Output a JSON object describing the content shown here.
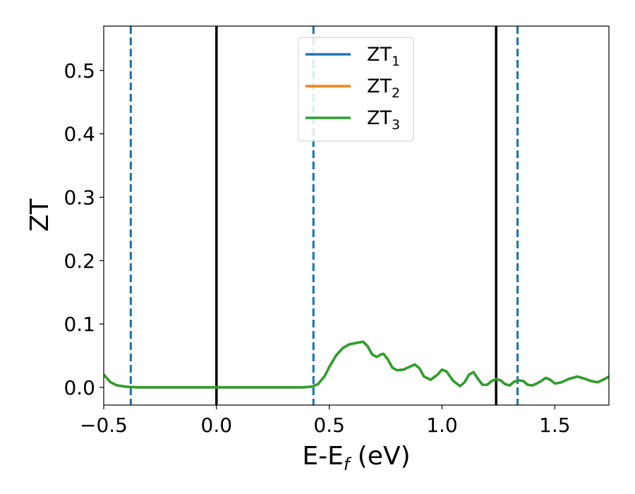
{
  "chart_data": {
    "type": "line",
    "xlabel": "E-E",
    "xlabel_sub": "f",
    "xlabel_unit": " (eV)",
    "ylabel": "ZT",
    "xlim": [
      -0.5,
      1.74
    ],
    "ylim": [
      -0.028,
      0.57
    ],
    "xticks": [
      -0.5,
      0.0,
      0.5,
      1.0,
      1.5
    ],
    "xtick_labels": [
      "−0.5",
      "0.0",
      "0.5",
      "1.0",
      "1.5"
    ],
    "yticks": [
      0.0,
      0.1,
      0.2,
      0.3,
      0.4,
      0.5
    ],
    "ytick_labels": [
      "0.0",
      "0.1",
      "0.2",
      "0.3",
      "0.4",
      "0.5"
    ],
    "grid": false,
    "legend_position": "top-center",
    "series": [
      {
        "name": "ZT",
        "sub": "1",
        "color": "#1f77b4",
        "x": [
          -0.5,
          -0.47,
          -0.44,
          -0.4,
          -0.35,
          -0.3,
          -0.2,
          -0.1,
          0.0,
          0.1,
          0.2,
          0.3,
          0.38,
          0.42,
          0.45,
          0.48,
          0.5,
          0.53,
          0.56,
          0.59,
          0.62,
          0.65,
          0.67,
          0.69,
          0.71,
          0.73,
          0.74,
          0.76,
          0.78,
          0.8,
          0.83,
          0.86,
          0.88,
          0.9,
          0.92,
          0.95,
          0.98,
          1.0,
          1.02,
          1.05,
          1.08,
          1.1,
          1.12,
          1.14,
          1.16,
          1.18,
          1.2,
          1.22,
          1.24,
          1.26,
          1.28,
          1.3,
          1.32,
          1.34,
          1.36,
          1.38,
          1.4,
          1.42,
          1.44,
          1.46,
          1.48,
          1.5,
          1.53,
          1.56,
          1.6,
          1.63,
          1.66,
          1.69,
          1.72,
          1.74
        ],
        "y": [
          0.02,
          0.008,
          0.003,
          0.001,
          0.0,
          0.0,
          0.0,
          0.0,
          0.0,
          0.0,
          0.0,
          0.0,
          0.0,
          0.001,
          0.005,
          0.018,
          0.032,
          0.05,
          0.062,
          0.068,
          0.07,
          0.072,
          0.065,
          0.052,
          0.048,
          0.052,
          0.053,
          0.044,
          0.031,
          0.027,
          0.028,
          0.033,
          0.036,
          0.03,
          0.017,
          0.012,
          0.02,
          0.028,
          0.025,
          0.01,
          0.002,
          0.008,
          0.02,
          0.024,
          0.013,
          0.004,
          0.004,
          0.01,
          0.013,
          0.011,
          0.005,
          0.003,
          0.009,
          0.011,
          0.01,
          0.004,
          0.003,
          0.006,
          0.01,
          0.015,
          0.012,
          0.006,
          0.008,
          0.013,
          0.017,
          0.014,
          0.01,
          0.008,
          0.013,
          0.017
        ]
      },
      {
        "name": "ZT",
        "sub": "2",
        "color": "#ff7f0e",
        "x": [
          -0.5,
          -0.47,
          -0.44,
          -0.4,
          -0.35,
          -0.3,
          -0.2,
          -0.1,
          0.0,
          0.1,
          0.2,
          0.3,
          0.38,
          0.42,
          0.45,
          0.48,
          0.5,
          0.53,
          0.56,
          0.59,
          0.62,
          0.65,
          0.67,
          0.69,
          0.71,
          0.73,
          0.74,
          0.76,
          0.78,
          0.8,
          0.83,
          0.86,
          0.88,
          0.9,
          0.92,
          0.95,
          0.98,
          1.0,
          1.02,
          1.05,
          1.08,
          1.1,
          1.12,
          1.14,
          1.16,
          1.18,
          1.2,
          1.22,
          1.24,
          1.26,
          1.28,
          1.3,
          1.32,
          1.34,
          1.36,
          1.38,
          1.4,
          1.42,
          1.44,
          1.46,
          1.48,
          1.5,
          1.53,
          1.56,
          1.6,
          1.63,
          1.66,
          1.69,
          1.72,
          1.74
        ],
        "y": [
          0.02,
          0.008,
          0.003,
          0.001,
          0.0,
          0.0,
          0.0,
          0.0,
          0.0,
          0.0,
          0.0,
          0.0,
          0.0,
          0.001,
          0.005,
          0.018,
          0.032,
          0.05,
          0.062,
          0.068,
          0.07,
          0.072,
          0.065,
          0.052,
          0.048,
          0.052,
          0.053,
          0.044,
          0.031,
          0.027,
          0.028,
          0.033,
          0.036,
          0.03,
          0.017,
          0.012,
          0.02,
          0.028,
          0.025,
          0.01,
          0.002,
          0.008,
          0.02,
          0.024,
          0.013,
          0.004,
          0.004,
          0.01,
          0.013,
          0.011,
          0.005,
          0.003,
          0.009,
          0.011,
          0.01,
          0.004,
          0.003,
          0.006,
          0.01,
          0.015,
          0.012,
          0.006,
          0.008,
          0.013,
          0.017,
          0.014,
          0.01,
          0.008,
          0.013,
          0.017
        ]
      },
      {
        "name": "ZT",
        "sub": "3",
        "color": "#2ca02c",
        "x": [
          -0.5,
          -0.47,
          -0.44,
          -0.4,
          -0.35,
          -0.3,
          -0.2,
          -0.1,
          0.0,
          0.1,
          0.2,
          0.3,
          0.38,
          0.42,
          0.45,
          0.48,
          0.5,
          0.53,
          0.56,
          0.59,
          0.62,
          0.65,
          0.67,
          0.69,
          0.71,
          0.73,
          0.74,
          0.76,
          0.78,
          0.8,
          0.83,
          0.86,
          0.88,
          0.9,
          0.92,
          0.95,
          0.98,
          1.0,
          1.02,
          1.05,
          1.08,
          1.1,
          1.12,
          1.14,
          1.16,
          1.18,
          1.2,
          1.22,
          1.24,
          1.26,
          1.28,
          1.3,
          1.32,
          1.34,
          1.36,
          1.38,
          1.4,
          1.42,
          1.44,
          1.46,
          1.48,
          1.5,
          1.53,
          1.56,
          1.6,
          1.63,
          1.66,
          1.69,
          1.72,
          1.74
        ],
        "y": [
          0.02,
          0.008,
          0.003,
          0.001,
          0.0,
          0.0,
          0.0,
          0.0,
          0.0,
          0.0,
          0.0,
          0.0,
          0.0,
          0.001,
          0.005,
          0.018,
          0.032,
          0.05,
          0.062,
          0.068,
          0.07,
          0.072,
          0.065,
          0.052,
          0.048,
          0.052,
          0.053,
          0.044,
          0.031,
          0.027,
          0.028,
          0.033,
          0.036,
          0.03,
          0.017,
          0.012,
          0.02,
          0.028,
          0.025,
          0.01,
          0.002,
          0.008,
          0.02,
          0.024,
          0.013,
          0.004,
          0.004,
          0.01,
          0.013,
          0.011,
          0.005,
          0.003,
          0.009,
          0.011,
          0.01,
          0.004,
          0.003,
          0.006,
          0.01,
          0.015,
          0.012,
          0.006,
          0.008,
          0.013,
          0.017,
          0.014,
          0.01,
          0.008,
          0.013,
          0.017
        ]
      }
    ],
    "vlines": [
      {
        "x": 0.0,
        "style": "solid",
        "color": "#000000"
      },
      {
        "x": 1.24,
        "style": "solid",
        "color": "#000000"
      },
      {
        "x": -0.38,
        "style": "dashed",
        "color": "#1f77b4"
      },
      {
        "x": 0.43,
        "style": "dashed",
        "color": "#1f77b4"
      },
      {
        "x": 1.335,
        "style": "dashed",
        "color": "#1f77b4"
      }
    ]
  }
}
